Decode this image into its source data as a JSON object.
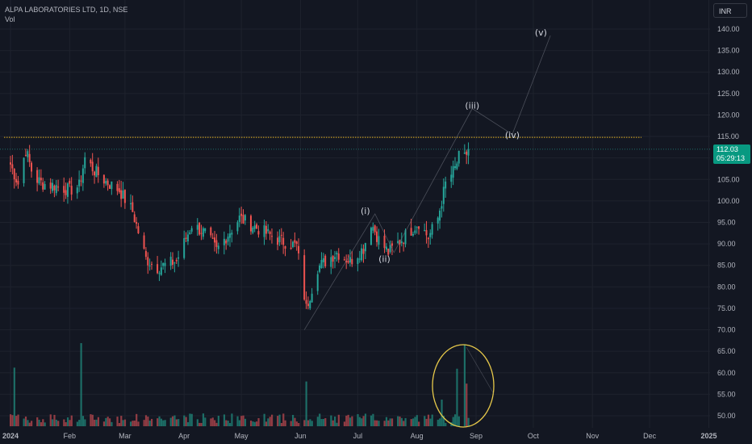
{
  "header": {
    "symbol_line": "ALPA LABORATORIES LTD, 1D, NSE",
    "vol_label": "Vol"
  },
  "currency_button": "INR",
  "last_price": {
    "value": "112.03",
    "countdown": "05:29:13"
  },
  "colors": {
    "background": "#131722",
    "up": "#26a69a",
    "down": "#ef5350",
    "up_volume": "#1e7d72",
    "down_volume": "#a8434a",
    "resistance": "#e6b422",
    "wave_line": "#787b86",
    "ellipse": "#e6c84a",
    "price_tag": "#089981"
  },
  "chart_data": {
    "type": "candlestick",
    "y_axis": {
      "ticks": [
        "140.00",
        "135.00",
        "130.00",
        "125.00",
        "120.00",
        "115.00",
        "110.00",
        "105.00",
        "100.00",
        "95.00",
        "90.00",
        "85.00",
        "80.00",
        "75.00",
        "70.00",
        "65.00",
        "60.00",
        "55.00",
        "50.00"
      ],
      "range": [
        48.5,
        143.5
      ]
    },
    "x_axis": {
      "ticks": [
        "2024",
        "Feb",
        "Mar",
        "Apr",
        "May",
        "Jun",
        "Jul",
        "Aug",
        "Sep",
        "Oct",
        "Nov",
        "Dec",
        "2025"
      ]
    },
    "resistance_level": 114.8,
    "last_close": 112.03,
    "wave_labels": [
      {
        "text": "(i)",
        "date": "2024-07-05",
        "price": 97.0
      },
      {
        "text": "(ii)",
        "date": "2024-07-15",
        "price": 85.8
      },
      {
        "text": "(iii)",
        "date": "2024-08-30",
        "price": 121.5
      },
      {
        "text": "(iv)",
        "date": "2024-09-20",
        "price": 114.6
      },
      {
        "text": "(v)",
        "date": "2024-10-05",
        "price": 138.5
      }
    ],
    "projection_path": [
      {
        "date": "2024-06-03",
        "price": 70.0
      },
      {
        "date": "2024-07-10",
        "price": 97.0
      },
      {
        "date": "2024-07-20",
        "price": 88.0
      },
      {
        "date": "2024-08-30",
        "price": 121.5
      },
      {
        "date": "2024-09-20",
        "price": 115.5
      },
      {
        "date": "2024-10-10",
        "price": 138.5
      }
    ],
    "price_keypoints": [
      {
        "date": "2024-01-01",
        "price": 108.5
      },
      {
        "date": "2024-01-05",
        "price": 104.0
      },
      {
        "date": "2024-01-09",
        "price": 112.0
      },
      {
        "date": "2024-01-13",
        "price": 105.5
      },
      {
        "date": "2024-01-18",
        "price": 104.0
      },
      {
        "date": "2024-01-25",
        "price": 103.5
      },
      {
        "date": "2024-02-01",
        "price": 102.5
      },
      {
        "date": "2024-02-06",
        "price": 103.5
      },
      {
        "date": "2024-02-09",
        "price": 110.0
      },
      {
        "date": "2024-02-14",
        "price": 107.0
      },
      {
        "date": "2024-02-20",
        "price": 104.5
      },
      {
        "date": "2024-02-27",
        "price": 102.5
      },
      {
        "date": "2024-03-05",
        "price": 97.5
      },
      {
        "date": "2024-03-12",
        "price": 86.5
      },
      {
        "date": "2024-03-18",
        "price": 84.5
      },
      {
        "date": "2024-03-28",
        "price": 86.0
      },
      {
        "date": "2024-04-05",
        "price": 94.5
      },
      {
        "date": "2024-04-12",
        "price": 92.5
      },
      {
        "date": "2024-04-18",
        "price": 88.5
      },
      {
        "date": "2024-04-30",
        "price": 96.0
      },
      {
        "date": "2024-05-10",
        "price": 93.5
      },
      {
        "date": "2024-05-20",
        "price": 91.0
      },
      {
        "date": "2024-05-30",
        "price": 89.5
      },
      {
        "date": "2024-06-04",
        "price": 75.0
      },
      {
        "date": "2024-06-10",
        "price": 84.5
      },
      {
        "date": "2024-06-20",
        "price": 88.0
      },
      {
        "date": "2024-06-27",
        "price": 86.0
      },
      {
        "date": "2024-07-04",
        "price": 89.0
      },
      {
        "date": "2024-07-08",
        "price": 95.0
      },
      {
        "date": "2024-07-12",
        "price": 91.0
      },
      {
        "date": "2024-07-17",
        "price": 88.0
      },
      {
        "date": "2024-07-25",
        "price": 91.5
      },
      {
        "date": "2024-08-02",
        "price": 95.0
      },
      {
        "date": "2024-08-07",
        "price": 91.5
      },
      {
        "date": "2024-08-12",
        "price": 96.0
      },
      {
        "date": "2024-08-16",
        "price": 104.0
      },
      {
        "date": "2024-08-21",
        "price": 107.5
      },
      {
        "date": "2024-08-24",
        "price": 111.5
      },
      {
        "date": "2024-08-26",
        "price": 110.0
      },
      {
        "date": "2024-08-28",
        "price": 112.03
      }
    ],
    "volume_spikes": [
      {
        "date": "2024-01-03",
        "level": 0.55,
        "up": true
      },
      {
        "date": "2024-02-07",
        "level": 0.78,
        "up": true
      },
      {
        "date": "2024-06-04",
        "level": 0.42,
        "up": true
      },
      {
        "date": "2024-07-06",
        "level": 0.22,
        "up": true
      },
      {
        "date": "2024-08-14",
        "level": 0.25,
        "up": true
      },
      {
        "date": "2024-08-22",
        "level": 0.54,
        "up": true
      },
      {
        "date": "2024-08-24",
        "level": 0.2,
        "up": true
      },
      {
        "date": "2024-08-26",
        "level": 0.77,
        "up": true
      },
      {
        "date": "2024-08-27",
        "level": 0.4,
        "up": false
      }
    ]
  }
}
